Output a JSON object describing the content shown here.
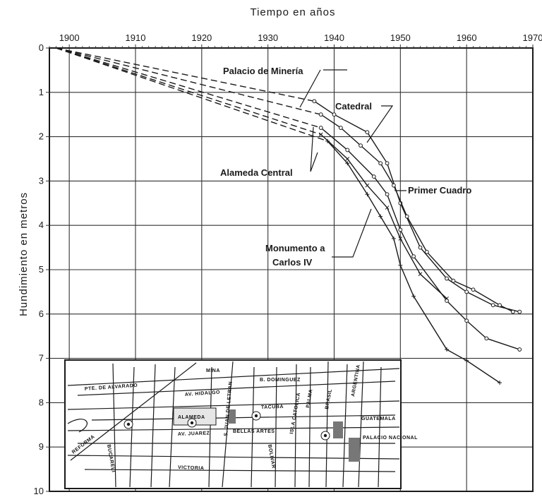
{
  "chart_data": {
    "type": "line",
    "xlabel": "Tiempo en años",
    "ylabel": "Hundimiento en metros",
    "xlim": [
      1897,
      1970
    ],
    "ylim": [
      0,
      10
    ],
    "y_inverted": true,
    "x_ticks": [
      "1900",
      "1910",
      "1920",
      "1930",
      "1940",
      "1950",
      "1960",
      "1970"
    ],
    "y_ticks": [
      "0",
      "1",
      "2",
      "3",
      "4",
      "5",
      "6",
      "7",
      "8",
      "9",
      "10"
    ],
    "grid": true,
    "series": [
      {
        "name": "Palacio de Minería",
        "dashed": [
          [
            1898,
            0
          ],
          [
            1937,
            1.2
          ]
        ],
        "solid": [
          [
            1937,
            1.2
          ],
          [
            1940,
            1.5
          ],
          [
            1945,
            1.9
          ],
          [
            1948,
            2.6
          ],
          [
            1950,
            3.5
          ],
          [
            1953,
            4.5
          ],
          [
            1957,
            5.2
          ],
          [
            1960,
            5.5
          ],
          [
            1964,
            5.8
          ],
          [
            1968,
            5.95
          ]
        ]
      },
      {
        "name": "Catedral",
        "dashed": [
          [
            1898,
            0
          ],
          [
            1938,
            1.5
          ]
        ],
        "solid": [
          [
            1938,
            1.5
          ],
          [
            1941,
            1.8
          ],
          [
            1944,
            2.2
          ],
          [
            1947,
            2.6
          ],
          [
            1949,
            3.1
          ],
          [
            1951,
            3.8
          ],
          [
            1954,
            4.6
          ],
          [
            1958,
            5.25
          ],
          [
            1961,
            5.45
          ],
          [
            1965,
            5.8
          ],
          [
            1967,
            5.95
          ]
        ]
      },
      {
        "name": "Primer Cuadro",
        "dashed": [
          [
            1898,
            0
          ],
          [
            1938,
            1.8
          ]
        ],
        "solid": [
          [
            1938,
            1.8
          ],
          [
            1942,
            2.3
          ],
          [
            1946,
            2.9
          ],
          [
            1948,
            3.3
          ],
          [
            1950,
            4.1
          ],
          [
            1952,
            4.7
          ],
          [
            1957,
            5.7
          ],
          [
            1960,
            6.15
          ],
          [
            1963,
            6.55
          ],
          [
            1968,
            6.8
          ]
        ]
      },
      {
        "name": "Alameda Central",
        "dashed": [
          [
            1898,
            0
          ],
          [
            1938,
            1.95
          ]
        ],
        "solid": [
          [
            1938,
            1.95
          ],
          [
            1942,
            2.5
          ],
          [
            1945,
            3.1
          ],
          [
            1948,
            3.6
          ],
          [
            1950,
            4.3
          ],
          [
            1953,
            5.1
          ],
          [
            1957,
            5.65
          ]
        ]
      },
      {
        "name": "Monumento a Carlos IV",
        "dashed": [
          [
            1898,
            0
          ],
          [
            1939,
            2.1
          ]
        ],
        "solid": [
          [
            1939,
            2.1
          ],
          [
            1942,
            2.6
          ],
          [
            1945,
            3.3
          ],
          [
            1947,
            3.8
          ],
          [
            1949,
            4.3
          ],
          [
            1950,
            4.9
          ],
          [
            1952,
            5.6
          ],
          [
            1957,
            6.8
          ],
          [
            1960,
            7.05
          ],
          [
            1965,
            7.55
          ]
        ]
      }
    ],
    "annotations": {
      "palacio": "Palacio de Minería",
      "catedral": "Catedral",
      "primer_cuadro": "Primer Cuadro",
      "alameda": "Alameda Central",
      "monumento_line1": "Monumento a",
      "monumento_line2": "Carlos IV"
    }
  },
  "inset_map": {
    "streets": [
      "MINA",
      "B. DOMINGUEZ",
      "PTE. DE ALVARADO",
      "AV. HIDALGO",
      "TACUBA",
      "ALAMEDA",
      "BELLAS ARTES",
      "GUATEMALA",
      "AV. JUAREZ",
      "REFORMA",
      "BUCARELI",
      "S. JUAN DE LETRAN",
      "BOLIVAR",
      "ISLA CATOLICA",
      "PALMA",
      "BRASIL",
      "ARGENTINA",
      "VICTORIA",
      "PALACIO NACIONAL"
    ]
  }
}
